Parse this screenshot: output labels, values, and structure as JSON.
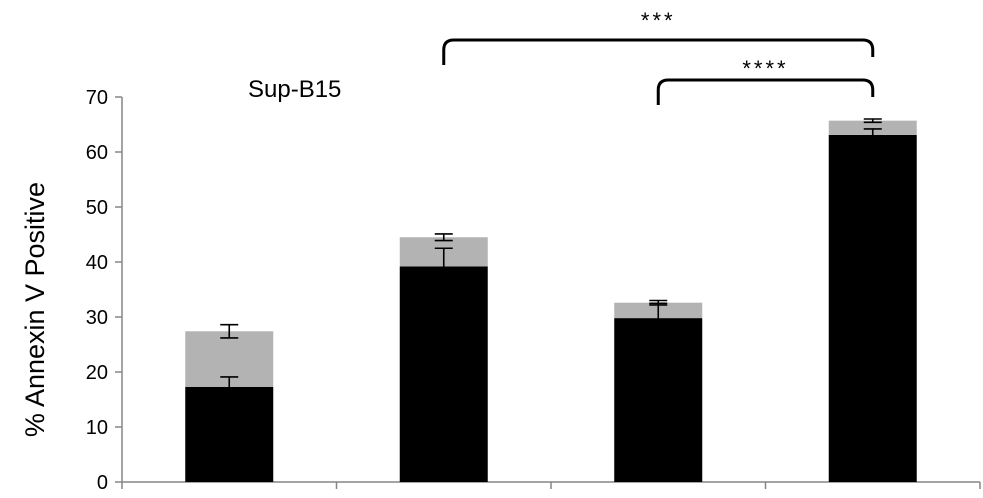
{
  "chart_data": {
    "type": "bar",
    "stacked": true,
    "title": "Sup-B15",
    "xlabel": "",
    "ylabel": "% Annexin V Positive",
    "ylim": [
      0,
      70
    ],
    "yticks": [
      0,
      10,
      20,
      30,
      40,
      50,
      60,
      70
    ],
    "grid": false,
    "categories": [
      "",
      "",
      "",
      ""
    ],
    "series": [
      {
        "values": [
          17.3,
          39.2,
          29.8,
          63.1
        ],
        "errors": [
          1.8,
          3.3,
          2.7,
          1.1
        ],
        "color": "#000000"
      },
      {
        "values": [
          10.1,
          5.3,
          2.8,
          2.6
        ],
        "errors": [
          1.2,
          0.6,
          0.4,
          0.3
        ],
        "color": "#b3b3b3"
      }
    ],
    "annotations": [
      {
        "text": "***",
        "from_category": 1,
        "to_category": 3
      },
      {
        "text": "****",
        "from_category": 2,
        "to_category": 3
      }
    ]
  }
}
